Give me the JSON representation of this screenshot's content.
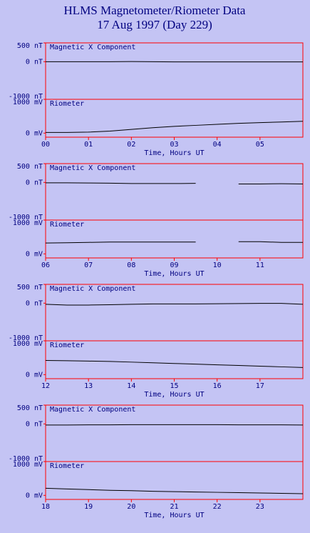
{
  "header": {
    "title": "HLMS Magnetometer/Riometer Data",
    "subtitle": "17 Aug 1997 (Day 229)"
  },
  "chart_data": [
    {
      "type": "line",
      "title": "Magnetic X Component",
      "color": "#000000",
      "xlim": [
        0,
        6
      ],
      "x": [
        0,
        0.5,
        1,
        1.5,
        2,
        2.5,
        3,
        3.5,
        4,
        4.5,
        5,
        5.5,
        6
      ],
      "values": [
        0,
        0,
        0,
        0,
        5,
        0,
        -5,
        -5,
        -5,
        -5,
        -5,
        -5,
        -5
      ],
      "ylim": [
        -1000,
        500
      ],
      "yticks": [
        {
          "value": 500,
          "label": "500 nT"
        },
        {
          "value": 0,
          "label": "0 nT"
        },
        {
          "value": -1000,
          "label": "-1000 nT"
        }
      ]
    },
    {
      "type": "line",
      "title": "Riometer",
      "color": "#000000",
      "xlim": [
        0,
        6
      ],
      "xlabel": "Time, Hours UT",
      "xticks": [
        {
          "value": 0,
          "label": "00"
        },
        {
          "value": 1,
          "label": "01"
        },
        {
          "value": 2,
          "label": "02"
        },
        {
          "value": 3,
          "label": "03"
        },
        {
          "value": 4,
          "label": "04"
        },
        {
          "value": 5,
          "label": "05"
        }
      ],
      "x": [
        0,
        0.5,
        1,
        1.5,
        2,
        2.5,
        3,
        3.5,
        4,
        4.5,
        5,
        5.5,
        6
      ],
      "values": [
        20,
        20,
        30,
        60,
        110,
        160,
        200,
        230,
        260,
        290,
        310,
        330,
        350
      ],
      "ylim": [
        -120,
        1000
      ],
      "yticks": [
        {
          "value": 1000,
          "label": "1000 mV"
        },
        {
          "value": 0,
          "label": "0 mV"
        }
      ]
    },
    {
      "type": "line",
      "title": "Magnetic X Component",
      "color": "#000000",
      "xlim": [
        6,
        12
      ],
      "x": [
        6,
        6.5,
        7,
        7.5,
        8,
        8.5,
        9,
        9.5,
        10,
        10.5,
        11,
        11.5,
        12
      ],
      "values": [
        -10,
        -10,
        -15,
        -20,
        -30,
        -30,
        -30,
        -25,
        null,
        -40,
        -40,
        -35,
        -40
      ],
      "ylim": [
        -1000,
        500
      ],
      "yticks": [
        {
          "value": 500,
          "label": "500 nT"
        },
        {
          "value": 0,
          "label": "0 nT"
        },
        {
          "value": -1000,
          "label": "-1000 nT"
        }
      ]
    },
    {
      "type": "line",
      "title": "Riometer",
      "color": "#000000",
      "xlim": [
        6,
        12
      ],
      "xlabel": "Time, Hours UT",
      "xticks": [
        {
          "value": 6,
          "label": "06"
        },
        {
          "value": 7,
          "label": "07"
        },
        {
          "value": 8,
          "label": "08"
        },
        {
          "value": 9,
          "label": "09"
        },
        10,
        11
      ],
      "x": [
        6,
        6.5,
        7,
        7.5,
        8,
        8.5,
        9,
        9.5,
        10,
        10.5,
        11,
        11.5,
        12
      ],
      "values": [
        320,
        330,
        340,
        350,
        350,
        350,
        350,
        350,
        null,
        360,
        360,
        340,
        340
      ],
      "ylim": [
        -120,
        1000
      ],
      "yticks": [
        {
          "value": 1000,
          "label": "1000 mV"
        },
        {
          "value": 0,
          "label": "0 mV"
        }
      ]
    },
    {
      "type": "line",
      "title": "Magnetic X Component",
      "color": "#000000",
      "xlim": [
        12,
        18
      ],
      "x": [
        12,
        12.5,
        13,
        13.5,
        14,
        14.5,
        15,
        15.5,
        16,
        16.5,
        17,
        17.5,
        18
      ],
      "values": [
        -30,
        -50,
        -50,
        -40,
        -30,
        -20,
        -20,
        -20,
        -15,
        -10,
        -5,
        -5,
        -30
      ],
      "ylim": [
        -1000,
        500
      ],
      "yticks": [
        {
          "value": 500,
          "label": "500 nT"
        },
        {
          "value": 0,
          "label": "0 nT"
        },
        {
          "value": -1000,
          "label": "-1000 nT"
        }
      ]
    },
    {
      "type": "line",
      "title": "Riometer",
      "color": "#000000",
      "xlim": [
        12,
        18
      ],
      "xlabel": "Time, Hours UT",
      "xticks": [
        12,
        13,
        14,
        15,
        16,
        17
      ],
      "x": [
        12,
        12.5,
        13,
        13.5,
        14,
        14.5,
        15,
        15.5,
        16,
        16.5,
        17,
        17.5,
        18
      ],
      "values": [
        420,
        410,
        400,
        390,
        370,
        350,
        330,
        310,
        290,
        270,
        250,
        230,
        210
      ],
      "ylim": [
        -120,
        1000
      ],
      "yticks": [
        {
          "value": 1000,
          "label": "1000 mV"
        },
        {
          "value": 0,
          "label": "0 mV"
        }
      ]
    },
    {
      "type": "line",
      "title": "Magnetic X Component",
      "color": "#000000",
      "xlim": [
        18,
        24
      ],
      "x": [
        18,
        18.5,
        19,
        19.5,
        20,
        20.5,
        21,
        21.5,
        22,
        22.5,
        23,
        23.5,
        24
      ],
      "values": [
        -30,
        -30,
        -25,
        -25,
        -20,
        -20,
        -20,
        -20,
        -20,
        -25,
        -25,
        -25,
        -30
      ],
      "ylim": [
        -1000,
        500
      ],
      "yticks": [
        {
          "value": 500,
          "label": "500 nT"
        },
        {
          "value": 0,
          "label": "0 nT"
        },
        {
          "value": -1000,
          "label": "-1000 nT"
        }
      ]
    },
    {
      "type": "line",
      "title": "Riometer",
      "color": "#000000",
      "xlim": [
        18,
        24
      ],
      "xlabel": "Time, Hours UT",
      "xticks": [
        18,
        19,
        20,
        21,
        22,
        23
      ],
      "x": [
        18,
        18.5,
        19,
        19.5,
        20,
        20.5,
        21,
        21.5,
        22,
        22.5,
        23,
        23.5,
        24
      ],
      "values": [
        210,
        190,
        170,
        150,
        140,
        120,
        110,
        100,
        90,
        80,
        70,
        60,
        50
      ],
      "ylim": [
        -120,
        1000
      ],
      "yticks": [
        {
          "value": 1000,
          "label": "1000 mV"
        },
        {
          "value": 0,
          "label": "0 mV"
        }
      ]
    }
  ]
}
